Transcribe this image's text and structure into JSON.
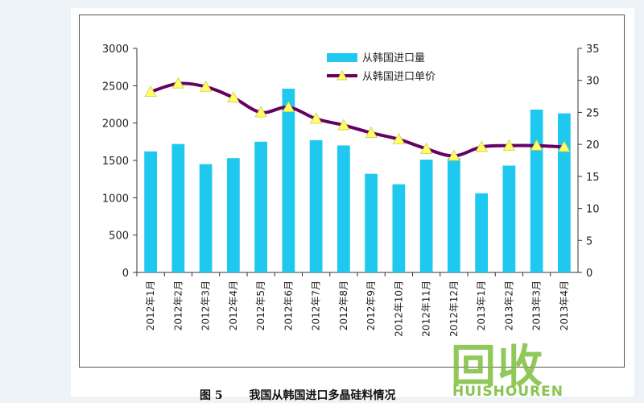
{
  "caption": {
    "figure_number": "图 5",
    "title": "我国从韩国进口多晶硅料情况"
  },
  "watermark": {
    "text": "回收",
    "subtext": "HUISHOUREN"
  },
  "colors": {
    "bar": "#1ec8ee",
    "line": "#660066",
    "marker": "#ffff66",
    "axis": "#333333"
  },
  "chart_data": {
    "type": "bar",
    "categories": [
      "2012年1月",
      "2012年2月",
      "2012年3月",
      "2012年4月",
      "2012年5月",
      "2012年6月",
      "2012年7月",
      "2012年8月",
      "2012年9月",
      "2012年10月",
      "2012年11月",
      "2012年12月",
      "2013年1月",
      "2013年2月",
      "2013年3月",
      "2013年4月"
    ],
    "series": [
      {
        "name": "从韩国进口量",
        "type": "bar",
        "axis": "left",
        "values": [
          1620,
          1720,
          1450,
          1530,
          1750,
          2460,
          1770,
          1700,
          1320,
          1180,
          1510,
          1530,
          1060,
          1430,
          2180,
          2130
        ]
      },
      {
        "name": "从韩国进口单价",
        "type": "line",
        "axis": "right",
        "values": [
          28.2,
          29.5,
          29.0,
          27.3,
          25.0,
          25.8,
          24.0,
          23.0,
          21.8,
          20.8,
          19.3,
          18.2,
          19.6,
          19.8,
          19.8,
          19.6
        ]
      }
    ],
    "y_left": {
      "ticks": [
        "0",
        "500",
        "1000",
        "1500",
        "2000",
        "2500",
        "3000"
      ],
      "ylim": [
        0,
        3000
      ]
    },
    "y_right": {
      "ticks": [
        "0",
        "5",
        "10",
        "15",
        "20",
        "25",
        "30",
        "35"
      ],
      "ylim": [
        0,
        35
      ]
    },
    "legend": "top-center",
    "grid": false
  }
}
